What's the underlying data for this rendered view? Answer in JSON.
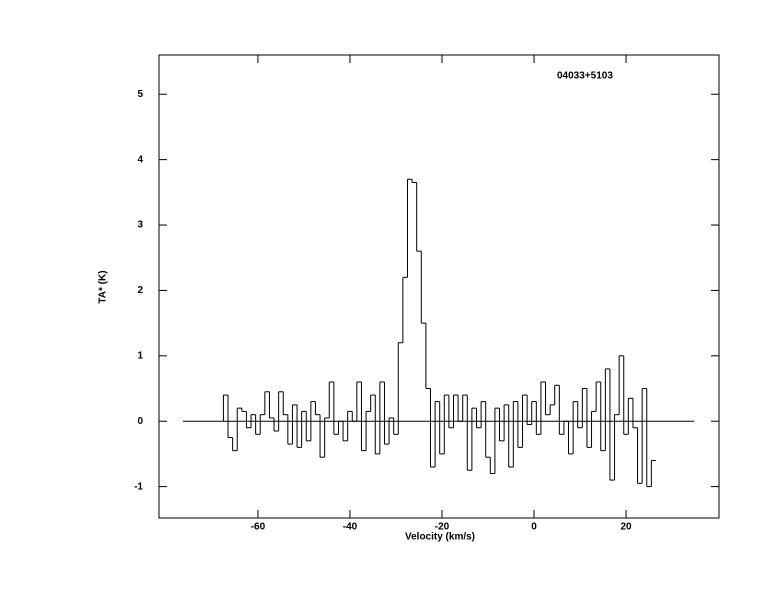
{
  "chart_data": {
    "type": "step",
    "annotation": "04033+5103",
    "xlabel": "Velocity (km/s)",
    "ylabel": "TA* (K)",
    "xlim": [
      -81.5,
      40.2
    ],
    "ylim": [
      -1.48,
      5.6
    ],
    "xticks": [
      -60,
      -40,
      -20,
      0,
      20
    ],
    "yticks": [
      -1,
      0,
      1,
      2,
      3,
      4,
      5
    ],
    "color": "#000000",
    "baseline": {
      "x": [
        -76.3,
        34.8
      ],
      "y": [
        0,
        0
      ]
    },
    "x": [
      -67,
      -66,
      -65,
      -64,
      -63,
      -62,
      -61,
      -60,
      -59,
      -58,
      -57,
      -56,
      -55,
      -54,
      -53,
      -52,
      -51,
      -50,
      -49,
      -48,
      -47,
      -46,
      -45,
      -44,
      -43,
      -42,
      -41,
      -40,
      -39,
      -38,
      -37,
      -36,
      -35,
      -34,
      -33,
      -32,
      -31,
      -30,
      -29,
      -28,
      -27,
      -26,
      -25,
      -24,
      -23,
      -22,
      -21,
      -20,
      -19,
      -18,
      -17,
      -16,
      -15,
      -14,
      -13,
      -12,
      -11,
      -10,
      -9,
      -8,
      -7,
      -6,
      -5,
      -4,
      -3,
      -2,
      -1,
      0,
      1,
      2,
      3,
      4,
      5,
      6,
      7,
      8,
      9,
      10,
      11,
      12,
      13,
      14,
      15,
      16,
      17,
      18,
      19,
      20,
      21,
      22,
      23,
      24,
      25,
      26
    ],
    "values": [
      0.4,
      -0.25,
      -0.45,
      0.2,
      0.15,
      -0.1,
      0.1,
      -0.2,
      0.1,
      0.45,
      0.05,
      -0.15,
      0.45,
      0.1,
      -0.35,
      0.25,
      -0.4,
      0.15,
      -0.3,
      0.3,
      0.1,
      -0.55,
      0.05,
      0.6,
      -0.2,
      0.0,
      -0.3,
      0.15,
      0.0,
      0.6,
      -0.45,
      0.15,
      0.4,
      -0.5,
      0.6,
      -0.35,
      0.05,
      -0.2,
      1.2,
      2.2,
      3.7,
      3.65,
      2.6,
      1.5,
      0.5,
      -0.7,
      0.3,
      -0.5,
      0.4,
      -0.1,
      0.4,
      0.0,
      0.4,
      -0.75,
      0.2,
      -0.1,
      0.3,
      -0.55,
      -0.8,
      0.2,
      -0.3,
      0.25,
      -0.7,
      0.3,
      -0.4,
      0.4,
      -0.05,
      0.3,
      -0.2,
      0.6,
      0.1,
      0.25,
      0.55,
      -0.2,
      0.0,
      -0.5,
      0.3,
      -0.1,
      0.5,
      -0.4,
      0.15,
      0.6,
      -0.45,
      0.8,
      -0.9,
      0.1,
      1.0,
      -0.2,
      0.35,
      -0.1,
      -0.95,
      0.5,
      -1.0,
      -0.6
    ]
  }
}
